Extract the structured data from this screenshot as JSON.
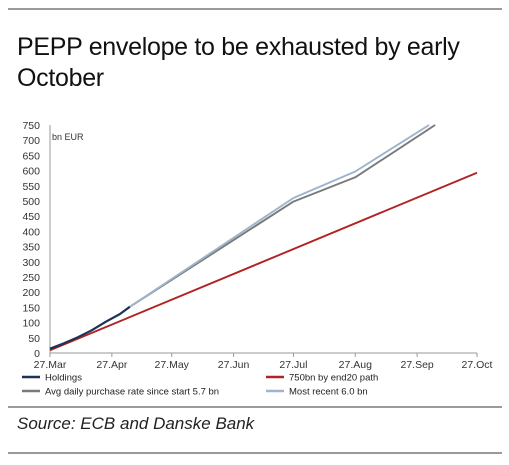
{
  "chart_data": {
    "type": "line",
    "title": "PEPP envelope to be exhausted by early October",
    "ylabel": "bn EUR",
    "ylim": [
      0,
      750
    ],
    "yticks": [
      0,
      50,
      100,
      150,
      200,
      250,
      300,
      350,
      400,
      450,
      500,
      550,
      600,
      650,
      700,
      750
    ],
    "xticks": [
      "27.Mar",
      "27.Apr",
      "27.May",
      "27.Jun",
      "27.Jul",
      "27.Aug",
      "27.Sep",
      "27.Oct"
    ],
    "xtick_days": [
      0,
      31,
      61,
      92,
      122,
      153,
      184,
      214
    ],
    "grid": false,
    "legend": "bottom",
    "series": [
      {
        "name": "Holdings",
        "color": "#1a3357",
        "points": [
          [
            0,
            14
          ],
          [
            7,
            32
          ],
          [
            14,
            52
          ],
          [
            21,
            75
          ],
          [
            28,
            103
          ],
          [
            35,
            128
          ],
          [
            40,
            152
          ]
        ]
      },
      {
        "name": "750bn by end20 path",
        "color": "#b22222",
        "points": [
          [
            0,
            9
          ],
          [
            214,
            593
          ]
        ]
      },
      {
        "name": "Avg daily purchase rate since start 5.7 bn",
        "color": "#7a7a7a",
        "points": [
          [
            40,
            152
          ],
          [
            122,
            498
          ],
          [
            153,
            578
          ],
          [
            193,
            750
          ]
        ]
      },
      {
        "name": "Most recent 6.0 bn",
        "color": "#9fb3ce",
        "points": [
          [
            40,
            152
          ],
          [
            122,
            510
          ],
          [
            153,
            597
          ],
          [
            190,
            750
          ]
        ]
      }
    ]
  },
  "source": "Source: ECB and Danske Bank"
}
